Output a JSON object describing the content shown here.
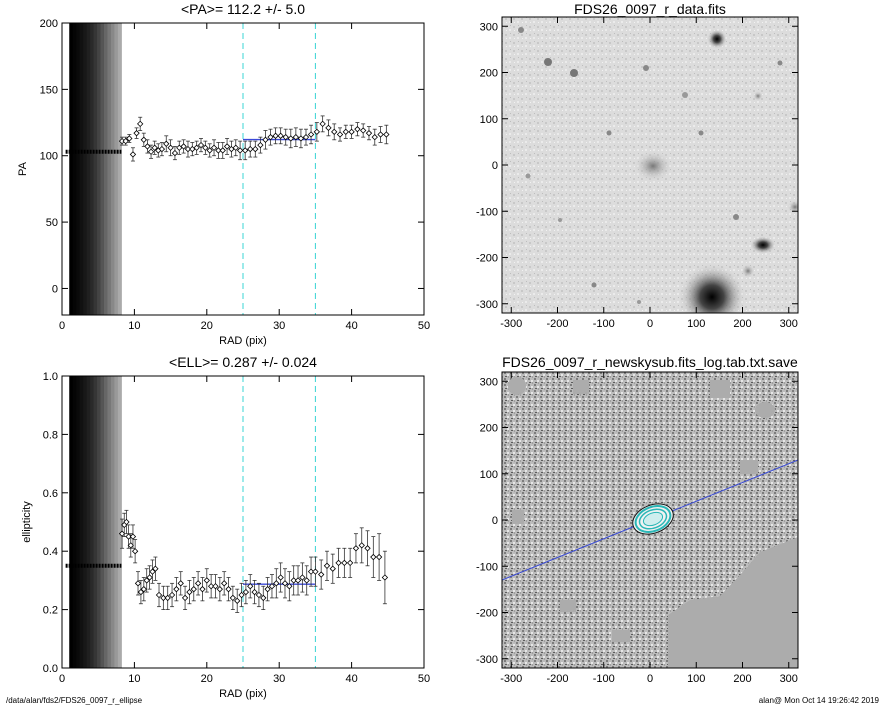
{
  "footer": {
    "path": "/data/alan/fds2/FDS26_0097_r_ellipse",
    "stamp": "alan@  Mon Oct 14 19:26:42 2019"
  },
  "chart_data": [
    {
      "id": "pa",
      "type": "scatter",
      "title": "<PA>= 112.2 +/-   5.0",
      "xlabel": "RAD (pix)",
      "ylabel": "PA",
      "xlim": [
        0,
        50
      ],
      "ylim": [
        -20,
        200
      ],
      "xticks": [
        0,
        10,
        20,
        30,
        40,
        50
      ],
      "yticks": [
        0,
        50,
        100,
        150,
        200
      ],
      "markers": [
        25,
        35
      ],
      "fit": {
        "x": [
          25,
          35
        ],
        "y": 112.2
      },
      "inner_constant": 103,
      "points": [
        [
          8.3,
          111,
          3
        ],
        [
          8.8,
          111,
          3
        ],
        [
          9.3,
          113,
          3
        ],
        [
          9.8,
          101,
          5
        ],
        [
          10.3,
          117,
          4
        ],
        [
          10.8,
          124,
          5
        ],
        [
          11.3,
          112,
          5
        ],
        [
          11.8,
          107,
          5
        ],
        [
          12.3,
          103,
          5
        ],
        [
          12.8,
          106,
          5
        ],
        [
          13.3,
          104,
          5
        ],
        [
          13.8,
          105,
          5
        ],
        [
          14.4,
          109,
          6
        ],
        [
          15.0,
          106,
          6
        ],
        [
          15.6,
          102,
          5
        ],
        [
          16.2,
          106,
          5
        ],
        [
          16.8,
          107,
          5
        ],
        [
          17.4,
          105,
          6
        ],
        [
          18.0,
          105,
          5
        ],
        [
          18.6,
          106,
          5
        ],
        [
          19.2,
          108,
          5
        ],
        [
          19.8,
          106,
          5
        ],
        [
          20.4,
          104,
          5
        ],
        [
          21.0,
          106,
          6
        ],
        [
          21.6,
          104,
          6
        ],
        [
          22.2,
          104,
          6
        ],
        [
          22.8,
          107,
          6
        ],
        [
          23.4,
          105,
          6
        ],
        [
          24.0,
          106,
          6
        ],
        [
          24.6,
          104,
          7
        ],
        [
          25.3,
          104,
          7
        ],
        [
          26.0,
          105,
          6
        ],
        [
          26.7,
          105,
          6
        ],
        [
          27.4,
          108,
          6
        ],
        [
          28.1,
          112,
          7
        ],
        [
          28.8,
          114,
          6
        ],
        [
          29.5,
          115,
          6
        ],
        [
          30.2,
          115,
          6
        ],
        [
          30.9,
          114,
          6
        ],
        [
          31.6,
          113,
          7
        ],
        [
          32.3,
          114,
          7
        ],
        [
          33.0,
          113,
          7
        ],
        [
          33.7,
          114,
          6
        ],
        [
          34.4,
          116,
          7
        ],
        [
          35.2,
          118,
          7
        ],
        [
          36.0,
          124,
          6
        ],
        [
          36.8,
          121,
          6
        ],
        [
          37.6,
          118,
          6
        ],
        [
          38.4,
          116,
          5
        ],
        [
          39.2,
          118,
          5
        ],
        [
          40.0,
          118,
          5
        ],
        [
          40.8,
          120,
          5
        ],
        [
          41.6,
          119,
          5
        ],
        [
          42.4,
          117,
          5
        ],
        [
          43.2,
          114,
          6
        ],
        [
          44.0,
          116,
          6
        ],
        [
          44.8,
          116,
          7
        ]
      ]
    },
    {
      "id": "ell",
      "type": "scatter",
      "title": "<ELL>= 0.287 +/-  0.024",
      "xlabel": "RAD (pix)",
      "ylabel": "ellipticity",
      "xlim": [
        0,
        50
      ],
      "ylim": [
        0,
        1
      ],
      "xticks": [
        0,
        10,
        20,
        30,
        40,
        50
      ],
      "yticks": [
        0.0,
        0.2,
        0.4,
        0.6,
        0.8,
        1.0
      ],
      "markers": [
        25,
        35
      ],
      "fit": {
        "x": [
          25,
          35
        ],
        "y": 0.287
      },
      "inner_constant": 0.35,
      "points": [
        [
          8.3,
          0.46,
          0.05
        ],
        [
          8.6,
          0.49,
          0.04
        ],
        [
          8.9,
          0.5,
          0.04
        ],
        [
          9.2,
          0.45,
          0.04
        ],
        [
          9.5,
          0.42,
          0.04
        ],
        [
          9.8,
          0.45,
          0.04
        ],
        [
          10.1,
          0.4,
          0.04
        ],
        [
          10.5,
          0.29,
          0.04
        ],
        [
          10.9,
          0.26,
          0.04
        ],
        [
          11.3,
          0.27,
          0.04
        ],
        [
          11.7,
          0.3,
          0.04
        ],
        [
          12.1,
          0.31,
          0.04
        ],
        [
          12.5,
          0.33,
          0.04
        ],
        [
          12.9,
          0.34,
          0.04
        ],
        [
          13.4,
          0.25,
          0.04
        ],
        [
          14.0,
          0.24,
          0.04
        ],
        [
          14.6,
          0.24,
          0.04
        ],
        [
          15.2,
          0.25,
          0.04
        ],
        [
          15.8,
          0.27,
          0.04
        ],
        [
          16.4,
          0.29,
          0.04
        ],
        [
          17.0,
          0.24,
          0.04
        ],
        [
          17.6,
          0.26,
          0.04
        ],
        [
          18.2,
          0.27,
          0.04
        ],
        [
          18.8,
          0.29,
          0.04
        ],
        [
          19.4,
          0.27,
          0.04
        ],
        [
          20.0,
          0.3,
          0.04
        ],
        [
          20.6,
          0.28,
          0.04
        ],
        [
          21.2,
          0.28,
          0.04
        ],
        [
          21.8,
          0.27,
          0.04
        ],
        [
          22.4,
          0.29,
          0.04
        ],
        [
          23.0,
          0.27,
          0.04
        ],
        [
          23.6,
          0.24,
          0.04
        ],
        [
          24.2,
          0.23,
          0.04
        ],
        [
          24.8,
          0.25,
          0.04
        ],
        [
          25.4,
          0.26,
          0.04
        ],
        [
          26.0,
          0.28,
          0.04
        ],
        [
          26.6,
          0.26,
          0.04
        ],
        [
          27.2,
          0.25,
          0.04
        ],
        [
          27.8,
          0.24,
          0.04
        ],
        [
          28.4,
          0.27,
          0.04
        ],
        [
          29.0,
          0.28,
          0.04
        ],
        [
          29.6,
          0.29,
          0.05
        ],
        [
          30.2,
          0.31,
          0.05
        ],
        [
          30.8,
          0.29,
          0.05
        ],
        [
          31.4,
          0.28,
          0.05
        ],
        [
          32.0,
          0.3,
          0.05
        ],
        [
          32.6,
          0.3,
          0.05
        ],
        [
          33.2,
          0.31,
          0.05
        ],
        [
          33.8,
          0.3,
          0.05
        ],
        [
          34.4,
          0.33,
          0.05
        ],
        [
          35.0,
          0.33,
          0.05
        ],
        [
          35.8,
          0.32,
          0.05
        ],
        [
          36.6,
          0.35,
          0.05
        ],
        [
          37.4,
          0.34,
          0.05
        ],
        [
          38.2,
          0.36,
          0.05
        ],
        [
          39.0,
          0.36,
          0.05
        ],
        [
          39.8,
          0.36,
          0.05
        ],
        [
          40.6,
          0.41,
          0.05
        ],
        [
          41.4,
          0.42,
          0.06
        ],
        [
          42.2,
          0.41,
          0.06
        ],
        [
          43.0,
          0.38,
          0.07
        ],
        [
          43.8,
          0.38,
          0.08
        ],
        [
          44.6,
          0.31,
          0.09
        ]
      ]
    },
    {
      "id": "img1",
      "type": "heatmap",
      "title": "FDS26_0097_r_data.fits",
      "xlim": [
        -320,
        320
      ],
      "ylim": [
        -320,
        320
      ],
      "xticks": [
        -300,
        -200,
        -100,
        0,
        100,
        200,
        300
      ],
      "yticks": [
        -300,
        -200,
        -100,
        0,
        100,
        200,
        300
      ]
    },
    {
      "id": "img2",
      "type": "heatmap",
      "title": "FDS26_0097_r_newskysub.fits_log.tab.txt.save",
      "xlim": [
        -320,
        320
      ],
      "ylim": [
        -320,
        320
      ],
      "xticks": [
        -300,
        -200,
        -100,
        0,
        100,
        200,
        300
      ],
      "yticks": [
        -300,
        -200,
        -100,
        0,
        100,
        200,
        300
      ]
    }
  ]
}
